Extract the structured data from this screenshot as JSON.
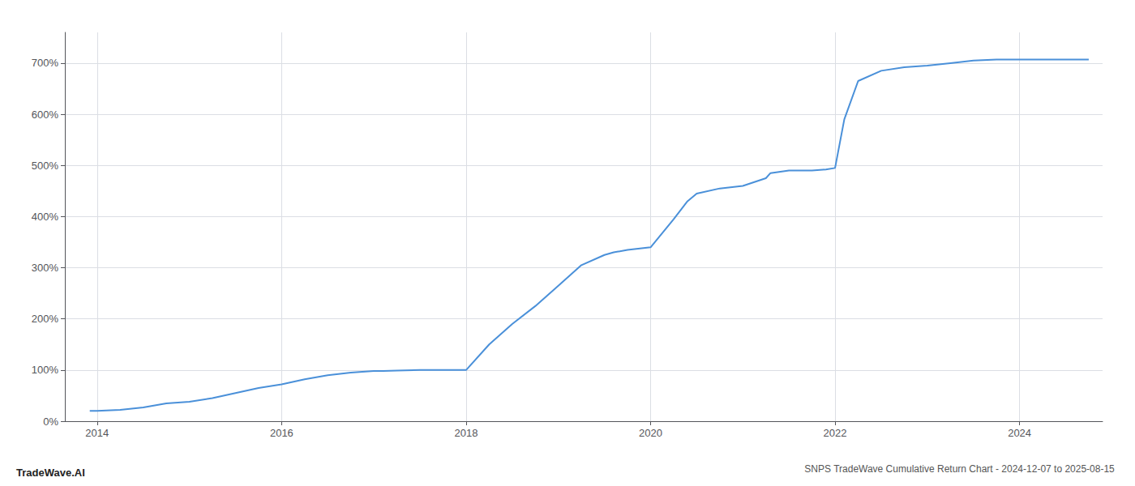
{
  "chart_data": {
    "type": "line",
    "title": "SNPS TradeWave Cumulative Return Chart - 2024-12-07 to 2025-08-15",
    "annotations": [
      "TradeWave.AI"
    ],
    "color": "#4a90d9",
    "grid": true,
    "x": [
      2013.92,
      2014.0,
      2014.25,
      2014.5,
      2014.75,
      2015.0,
      2015.25,
      2015.5,
      2015.75,
      2016.0,
      2016.25,
      2016.5,
      2016.75,
      2017.0,
      2017.1,
      2017.25,
      2017.5,
      2017.75,
      2018.0,
      2018.25,
      2018.5,
      2018.75,
      2019.0,
      2019.25,
      2019.5,
      2019.6,
      2019.75,
      2020.0,
      2020.25,
      2020.4,
      2020.5,
      2020.75,
      2021.0,
      2021.25,
      2021.3,
      2021.5,
      2021.75,
      2021.9,
      2022.0,
      2022.1,
      2022.25,
      2022.5,
      2022.75,
      2023.0,
      2023.25,
      2023.5,
      2023.75,
      2024.0,
      2024.25,
      2024.5,
      2024.75
    ],
    "values": [
      20,
      20,
      22,
      27,
      35,
      38,
      45,
      55,
      65,
      72,
      82,
      90,
      95,
      98,
      98,
      99,
      100,
      100,
      100,
      150,
      190,
      225,
      265,
      305,
      325,
      330,
      335,
      340,
      395,
      430,
      445,
      455,
      460,
      475,
      485,
      490,
      490,
      492,
      495,
      590,
      665,
      685,
      692,
      695,
      700,
      705,
      707,
      707,
      707,
      707,
      707
    ],
    "xlim": [
      2013.65,
      2024.9
    ],
    "ylim": [
      0,
      760
    ],
    "xticks": [
      2014,
      2016,
      2018,
      2020,
      2022,
      2024
    ],
    "yticks": [
      {
        "value": 0,
        "label": "0%"
      },
      {
        "value": 100,
        "label": "100%"
      },
      {
        "value": 200,
        "label": "200%"
      },
      {
        "value": 300,
        "label": "300%"
      },
      {
        "value": 400,
        "label": "400%"
      },
      {
        "value": 500,
        "label": "500%"
      },
      {
        "value": 600,
        "label": "600%"
      },
      {
        "value": 700,
        "label": "700%"
      }
    ]
  }
}
